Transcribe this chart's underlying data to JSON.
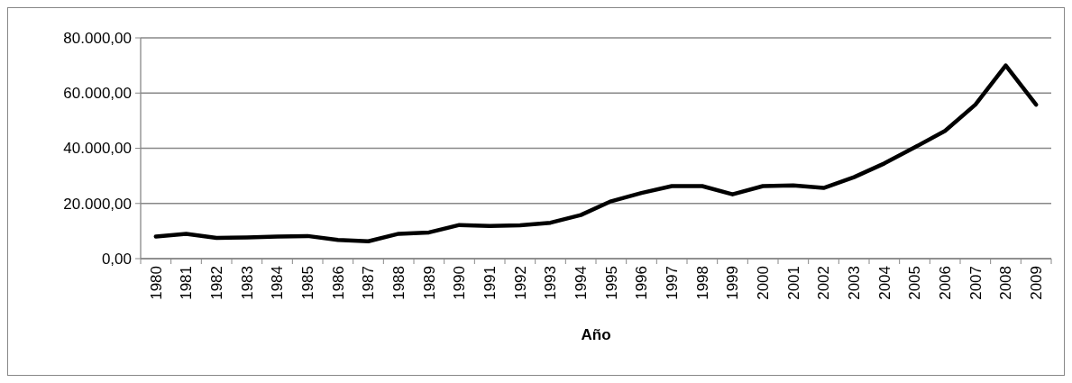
{
  "chart_data": {
    "type": "line",
    "xlabel": "Año",
    "categories": [
      "1980",
      "1981",
      "1982",
      "1983",
      "1984",
      "1985",
      "1986",
      "1987",
      "1988",
      "1989",
      "1990",
      "1991",
      "1992",
      "1993",
      "1994",
      "1995",
      "1996",
      "1997",
      "1998",
      "1999",
      "2000",
      "2001",
      "2002",
      "2003",
      "2004",
      "2005",
      "2006",
      "2007",
      "2008",
      "2009"
    ],
    "series": [
      {
        "color": "#000000",
        "values": [
          8000,
          9000,
          7500,
          7700,
          8000,
          8200,
          6800,
          6300,
          9000,
          9500,
          12200,
          11800,
          12100,
          13000,
          15800,
          20800,
          23800,
          26300,
          26300,
          23300,
          26300,
          26500,
          25600,
          29500,
          34500,
          40300,
          46300,
          55800,
          70000,
          55800
        ]
      }
    ],
    "ylim": [
      0,
      80000
    ],
    "yticks": [
      {
        "value": 0,
        "label": "0,00"
      },
      {
        "value": 20000,
        "label": "20.000,00"
      },
      {
        "value": 40000,
        "label": "40.000,00"
      },
      {
        "value": 60000,
        "label": "60.000,00"
      },
      {
        "value": 80000,
        "label": "80.000,00"
      }
    ],
    "grid": "y",
    "marker": "none",
    "line_style": "solid"
  }
}
